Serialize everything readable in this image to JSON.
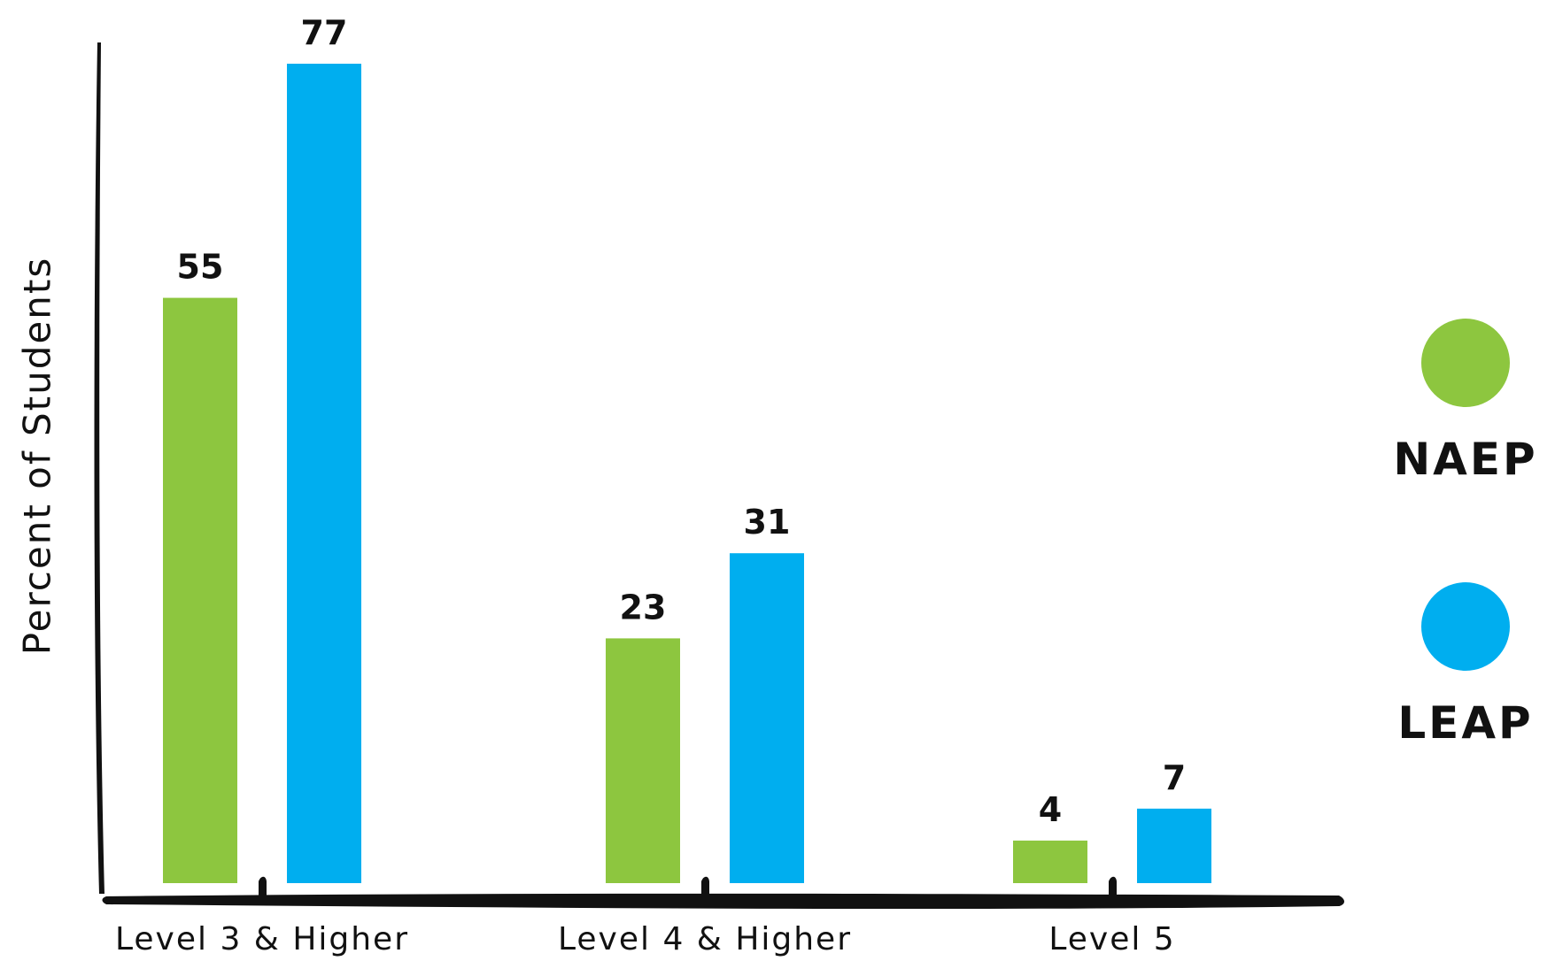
{
  "chart_data": {
    "type": "bar",
    "categories": [
      "Level 3 & Higher",
      "Level 4 & Higher",
      "Level 5"
    ],
    "series": [
      {
        "name": "NAEP",
        "values": [
          55,
          23,
          4
        ],
        "color": "#8dc63f"
      },
      {
        "name": "LEAP",
        "values": [
          77,
          31,
          7
        ],
        "color": "#00aeef"
      }
    ],
    "ylabel": "Percent of Students",
    "xlabel": "",
    "ylim": [
      0,
      80
    ],
    "grid": false,
    "legend": "right"
  }
}
